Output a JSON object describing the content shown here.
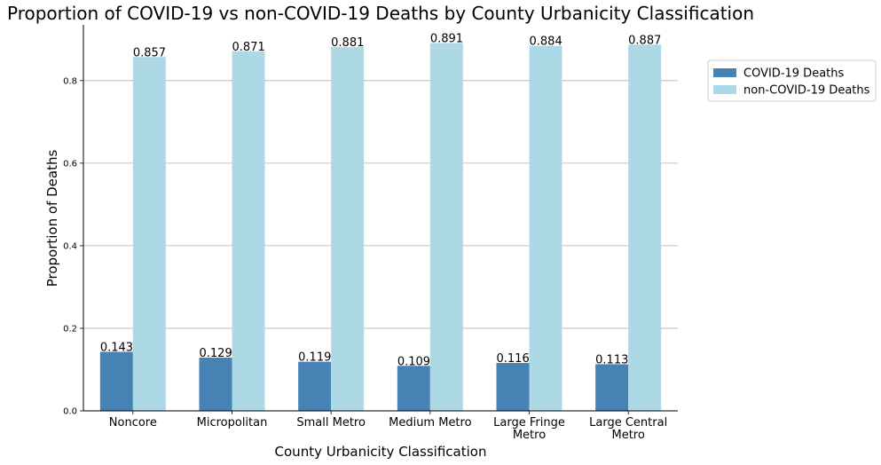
{
  "chart_data": {
    "type": "bar",
    "title": "Proportion of COVID-19 vs non-COVID-19 Deaths by County Urbanicity Classification",
    "xlabel": "County Urbanicity Classification",
    "ylabel": "Proportion of Deaths",
    "categories": [
      [
        "Noncore"
      ],
      [
        "Micropolitan"
      ],
      [
        "Small Metro"
      ],
      [
        "Medium Metro"
      ],
      [
        "Large Fringe",
        "Metro"
      ],
      [
        "Large Central",
        "Metro"
      ]
    ],
    "series": [
      {
        "name": "COVID-19 Deaths",
        "color": "#4682b4",
        "values": [
          0.143,
          0.129,
          0.119,
          0.109,
          0.116,
          0.113
        ],
        "labels": [
          "0.143",
          "0.129",
          "0.119",
          "0.109",
          "0.116",
          "0.113"
        ]
      },
      {
        "name": "non-COVID-19 Deaths",
        "color": "#add8e6",
        "values": [
          0.857,
          0.871,
          0.881,
          0.891,
          0.884,
          0.887
        ],
        "labels": [
          "0.857",
          "0.871",
          "0.881",
          "0.891",
          "0.884",
          "0.887"
        ]
      }
    ],
    "ylim": [
      0,
      0.935
    ],
    "yticks": [
      0.0,
      0.2,
      0.4,
      0.6,
      0.8
    ],
    "ytick_labels": [
      "0.0",
      "0.2",
      "0.4",
      "0.6",
      "0.8"
    ],
    "grid": "y",
    "legend": "right"
  }
}
